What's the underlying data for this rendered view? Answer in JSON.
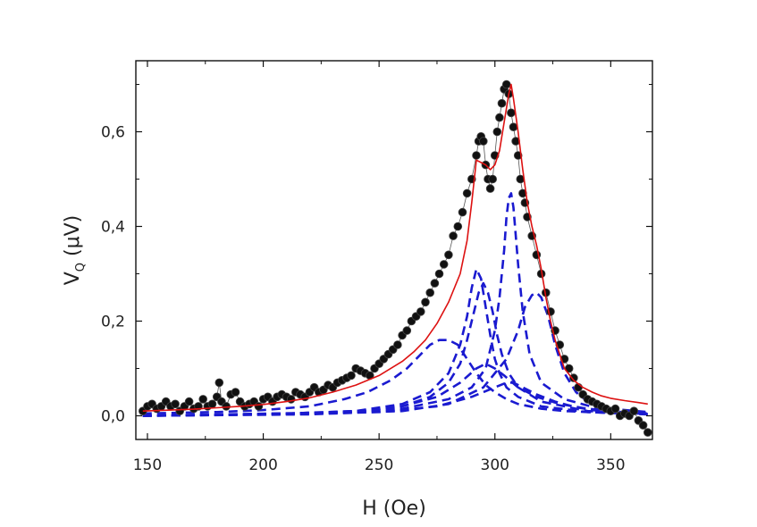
{
  "chart_data": {
    "type": "scatter",
    "xlabel": "H (Oe)",
    "ylabel_main": "V",
    "ylabel_sub": "Q",
    "ylabel_unit": " (μV)",
    "xlim": [
      145,
      368
    ],
    "ylim": [
      -0.05,
      0.75
    ],
    "xticks": [
      150,
      200,
      250,
      300,
      350
    ],
    "xtick_labels": [
      "150",
      "200",
      "250",
      "300",
      "350"
    ],
    "yticks": [
      0.0,
      0.2,
      0.4,
      0.6
    ],
    "ytick_labels": [
      "0,0",
      "0,2",
      "0,4",
      "0,6"
    ],
    "grid": false,
    "legend": "none",
    "colors": {
      "data": "#111111",
      "fit": "#dd1111",
      "components": "#1a1ad0"
    },
    "series": [
      {
        "role": "measured",
        "style": "black-dots",
        "x": [
          148,
          150,
          152,
          154,
          156,
          158,
          160,
          162,
          164,
          166,
          168,
          170,
          172,
          174,
          176,
          178,
          180,
          181,
          182,
          184,
          186,
          188,
          190,
          192,
          194,
          196,
          198,
          200,
          202,
          204,
          206,
          208,
          210,
          212,
          214,
          216,
          218,
          220,
          222,
          224,
          226,
          228,
          230,
          232,
          234,
          236,
          238,
          240,
          242,
          244,
          246,
          248,
          250,
          252,
          254,
          256,
          258,
          260,
          262,
          264,
          266,
          268,
          270,
          272,
          274,
          276,
          278,
          280,
          282,
          284,
          286,
          288,
          290,
          292,
          293,
          294,
          295,
          296,
          297,
          298,
          299,
          300,
          301,
          302,
          303,
          304,
          305,
          306,
          307,
          308,
          309,
          310,
          311,
          312,
          313,
          314,
          316,
          318,
          320,
          322,
          324,
          326,
          328,
          330,
          332,
          334,
          336,
          338,
          340,
          342,
          344,
          346,
          348,
          350,
          352,
          354,
          356,
          358,
          360,
          362,
          364,
          366
        ],
        "y": [
          0.01,
          0.02,
          0.025,
          0.015,
          0.02,
          0.03,
          0.02,
          0.025,
          0.01,
          0.02,
          0.03,
          0.015,
          0.02,
          0.035,
          0.02,
          0.025,
          0.04,
          0.07,
          0.03,
          0.02,
          0.045,
          0.05,
          0.03,
          0.02,
          0.025,
          0.03,
          0.02,
          0.035,
          0.04,
          0.03,
          0.04,
          0.045,
          0.04,
          0.035,
          0.05,
          0.045,
          0.04,
          0.05,
          0.06,
          0.05,
          0.055,
          0.065,
          0.06,
          0.07,
          0.075,
          0.08,
          0.085,
          0.1,
          0.095,
          0.09,
          0.085,
          0.1,
          0.11,
          0.12,
          0.13,
          0.14,
          0.15,
          0.17,
          0.18,
          0.2,
          0.21,
          0.22,
          0.24,
          0.26,
          0.28,
          0.3,
          0.32,
          0.34,
          0.38,
          0.4,
          0.43,
          0.47,
          0.5,
          0.55,
          0.58,
          0.59,
          0.58,
          0.53,
          0.5,
          0.48,
          0.5,
          0.55,
          0.6,
          0.63,
          0.66,
          0.69,
          0.7,
          0.68,
          0.64,
          0.61,
          0.58,
          0.55,
          0.5,
          0.47,
          0.45,
          0.42,
          0.38,
          0.34,
          0.3,
          0.26,
          0.22,
          0.18,
          0.15,
          0.12,
          0.1,
          0.08,
          0.06,
          0.045,
          0.035,
          0.03,
          0.025,
          0.02,
          0.015,
          0.01,
          0.015,
          0.0,
          0.005,
          0.0,
          0.01,
          -0.01,
          -0.02,
          -0.035
        ]
      },
      {
        "role": "fit",
        "style": "red-line",
        "x": [
          148,
          160,
          170,
          180,
          190,
          200,
          210,
          220,
          230,
          240,
          250,
          260,
          265,
          270,
          275,
          280,
          285,
          288,
          290,
          292,
          294,
          296,
          298,
          300,
          302,
          304,
          306,
          307,
          308,
          310,
          312,
          314,
          316,
          318,
          320,
          322,
          324,
          326,
          328,
          330,
          334,
          338,
          342,
          346,
          350,
          356,
          362,
          366
        ],
        "y": [
          0.01,
          0.012,
          0.014,
          0.017,
          0.02,
          0.024,
          0.03,
          0.038,
          0.05,
          0.065,
          0.085,
          0.115,
          0.135,
          0.16,
          0.195,
          0.24,
          0.3,
          0.37,
          0.45,
          0.54,
          0.535,
          0.53,
          0.52,
          0.53,
          0.56,
          0.62,
          0.68,
          0.7,
          0.67,
          0.6,
          0.52,
          0.45,
          0.4,
          0.36,
          0.31,
          0.25,
          0.2,
          0.16,
          0.13,
          0.1,
          0.075,
          0.06,
          0.05,
          0.042,
          0.037,
          0.032,
          0.028,
          0.025
        ]
      },
      {
        "role": "component",
        "style": "blue-dashed",
        "x": [
          148,
          180,
          200,
          220,
          235,
          245,
          255,
          262,
          268,
          272,
          276,
          280,
          284,
          288,
          292,
          296,
          300,
          305,
          310,
          320,
          330,
          340,
          350,
          366
        ],
        "y": [
          0.005,
          0.008,
          0.012,
          0.02,
          0.035,
          0.05,
          0.075,
          0.1,
          0.13,
          0.15,
          0.16,
          0.16,
          0.15,
          0.12,
          0.09,
          0.065,
          0.05,
          0.035,
          0.025,
          0.015,
          0.01,
          0.008,
          0.006,
          0.005
        ]
      },
      {
        "role": "component",
        "style": "blue-dashed",
        "x": [
          148,
          200,
          240,
          260,
          272,
          280,
          285,
          288,
          290,
          292,
          294,
          296,
          298,
          300,
          302,
          305,
          310,
          320,
          340,
          366
        ],
        "y": [
          0.0,
          0.003,
          0.01,
          0.025,
          0.05,
          0.09,
          0.15,
          0.21,
          0.27,
          0.31,
          0.29,
          0.23,
          0.17,
          0.12,
          0.09,
          0.06,
          0.04,
          0.02,
          0.008,
          0.003
        ]
      },
      {
        "role": "component",
        "style": "blue-dashed",
        "x": [
          148,
          200,
          240,
          260,
          272,
          280,
          285,
          288,
          291,
          293,
          295,
          297,
          299,
          301,
          303,
          306,
          310,
          320,
          340,
          366
        ],
        "y": [
          0.0,
          0.003,
          0.01,
          0.02,
          0.04,
          0.07,
          0.11,
          0.16,
          0.22,
          0.26,
          0.28,
          0.26,
          0.22,
          0.17,
          0.13,
          0.09,
          0.06,
          0.03,
          0.01,
          0.004
        ]
      },
      {
        "role": "component",
        "style": "blue-dashed",
        "x": [
          148,
          220,
          260,
          280,
          290,
          296,
          300,
          302,
          304,
          305,
          306,
          307,
          308,
          310,
          312,
          315,
          320,
          330,
          345,
          366
        ],
        "y": [
          0.0,
          0.004,
          0.015,
          0.035,
          0.06,
          0.1,
          0.18,
          0.25,
          0.35,
          0.42,
          0.46,
          0.47,
          0.44,
          0.32,
          0.22,
          0.13,
          0.07,
          0.035,
          0.015,
          0.006
        ]
      },
      {
        "role": "component",
        "style": "blue-dashed",
        "x": [
          148,
          220,
          260,
          280,
          295,
          305,
          310,
          313,
          316,
          318,
          320,
          323,
          326,
          330,
          335,
          340,
          350,
          366
        ],
        "y": [
          0.0,
          0.003,
          0.01,
          0.025,
          0.06,
          0.12,
          0.18,
          0.23,
          0.255,
          0.26,
          0.25,
          0.21,
          0.15,
          0.09,
          0.05,
          0.03,
          0.015,
          0.008
        ]
      },
      {
        "role": "component",
        "style": "blue-dashed",
        "x": [
          148,
          240,
          260,
          275,
          285,
          292,
          296,
          300,
          304,
          310,
          318,
          328,
          340,
          355,
          366
        ],
        "y": [
          0.0,
          0.008,
          0.02,
          0.04,
          0.07,
          0.1,
          0.11,
          0.1,
          0.085,
          0.06,
          0.04,
          0.025,
          0.015,
          0.008,
          0.005
        ]
      },
      {
        "role": "component",
        "style": "blue-dashed",
        "x": [
          148,
          250,
          275,
          290,
          300,
          305,
          308,
          312,
          318,
          326,
          335,
          345,
          355,
          366
        ],
        "y": [
          0.0,
          0.008,
          0.02,
          0.04,
          0.06,
          0.07,
          0.07,
          0.06,
          0.045,
          0.03,
          0.018,
          0.01,
          0.006,
          0.004
        ]
      }
    ]
  }
}
